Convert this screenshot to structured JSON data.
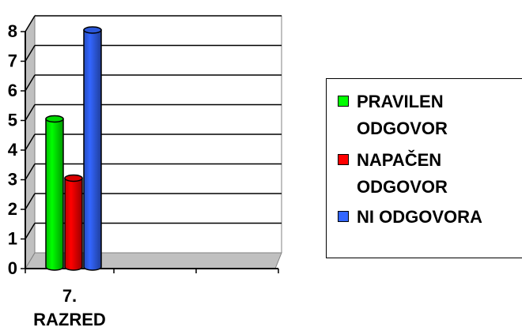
{
  "chart_data": {
    "type": "bar",
    "categories": [
      "7. RAZRED"
    ],
    "category_lines": [
      "7.",
      "RAZRED"
    ],
    "series": [
      {
        "name": "PRAVILEN ODGOVOR",
        "name_lines": [
          "PRAVILEN",
          "ODGOVOR"
        ],
        "color": "#00ff00",
        "values": [
          5
        ]
      },
      {
        "name": "NAPAČEN ODGOVOR",
        "name_lines": [
          "NAPAČEN",
          "ODGOVOR"
        ],
        "color": "#ff0000",
        "values": [
          3
        ]
      },
      {
        "name": "NI ODGOVORA",
        "name_lines": [
          "NI ODGOVORA"
        ],
        "color": "#3366ff",
        "values": [
          8
        ]
      }
    ],
    "ylim": [
      0,
      8
    ],
    "yticks": [
      "0",
      "1",
      "2",
      "3",
      "4",
      "5",
      "6",
      "7",
      "8"
    ],
    "grid": true,
    "legend_position": "right",
    "style": "3d-cylinder"
  }
}
